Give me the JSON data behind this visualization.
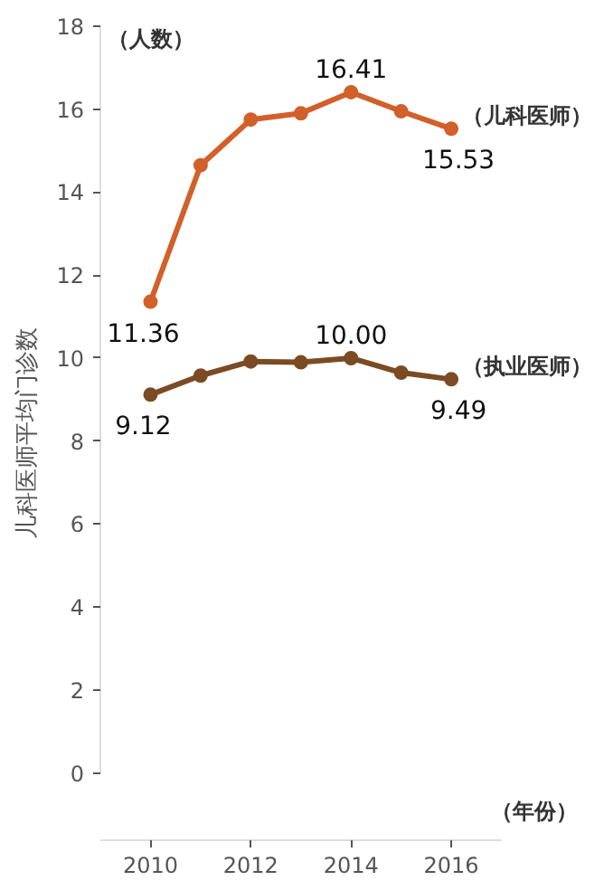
{
  "chart_data": {
    "type": "line",
    "ylabel": "儿科医师平均门诊数",
    "xlabel": "（年份）",
    "annotations": [
      "（人数）"
    ],
    "x": [
      2010,
      2011,
      2012,
      2013,
      2014,
      2015,
      2016
    ],
    "series": [
      {
        "name": "（儿科医师）",
        "color": "#d2602a",
        "values": [
          11.36,
          14.65,
          15.75,
          15.9,
          16.41,
          15.95,
          15.53
        ],
        "value_labels": [
          "11.36",
          null,
          null,
          null,
          "16.41",
          null,
          "15.53"
        ]
      },
      {
        "name": "（执业医师）",
        "color": "#7b4b24",
        "values": [
          9.12,
          9.58,
          9.92,
          9.9,
          10.0,
          9.65,
          9.49
        ],
        "value_labels": [
          "9.12",
          null,
          null,
          null,
          "10.00",
          null,
          "9.49"
        ]
      }
    ],
    "xlim": [
      2009,
      2017
    ],
    "xticks": [
      2010,
      2012,
      2014,
      2016
    ],
    "ylim": [
      0,
      18
    ],
    "yticks": [
      0,
      2,
      4,
      6,
      8,
      10,
      12,
      14,
      16,
      18
    ],
    "marker": "circle",
    "line_style": "solid",
    "grid": false
  }
}
